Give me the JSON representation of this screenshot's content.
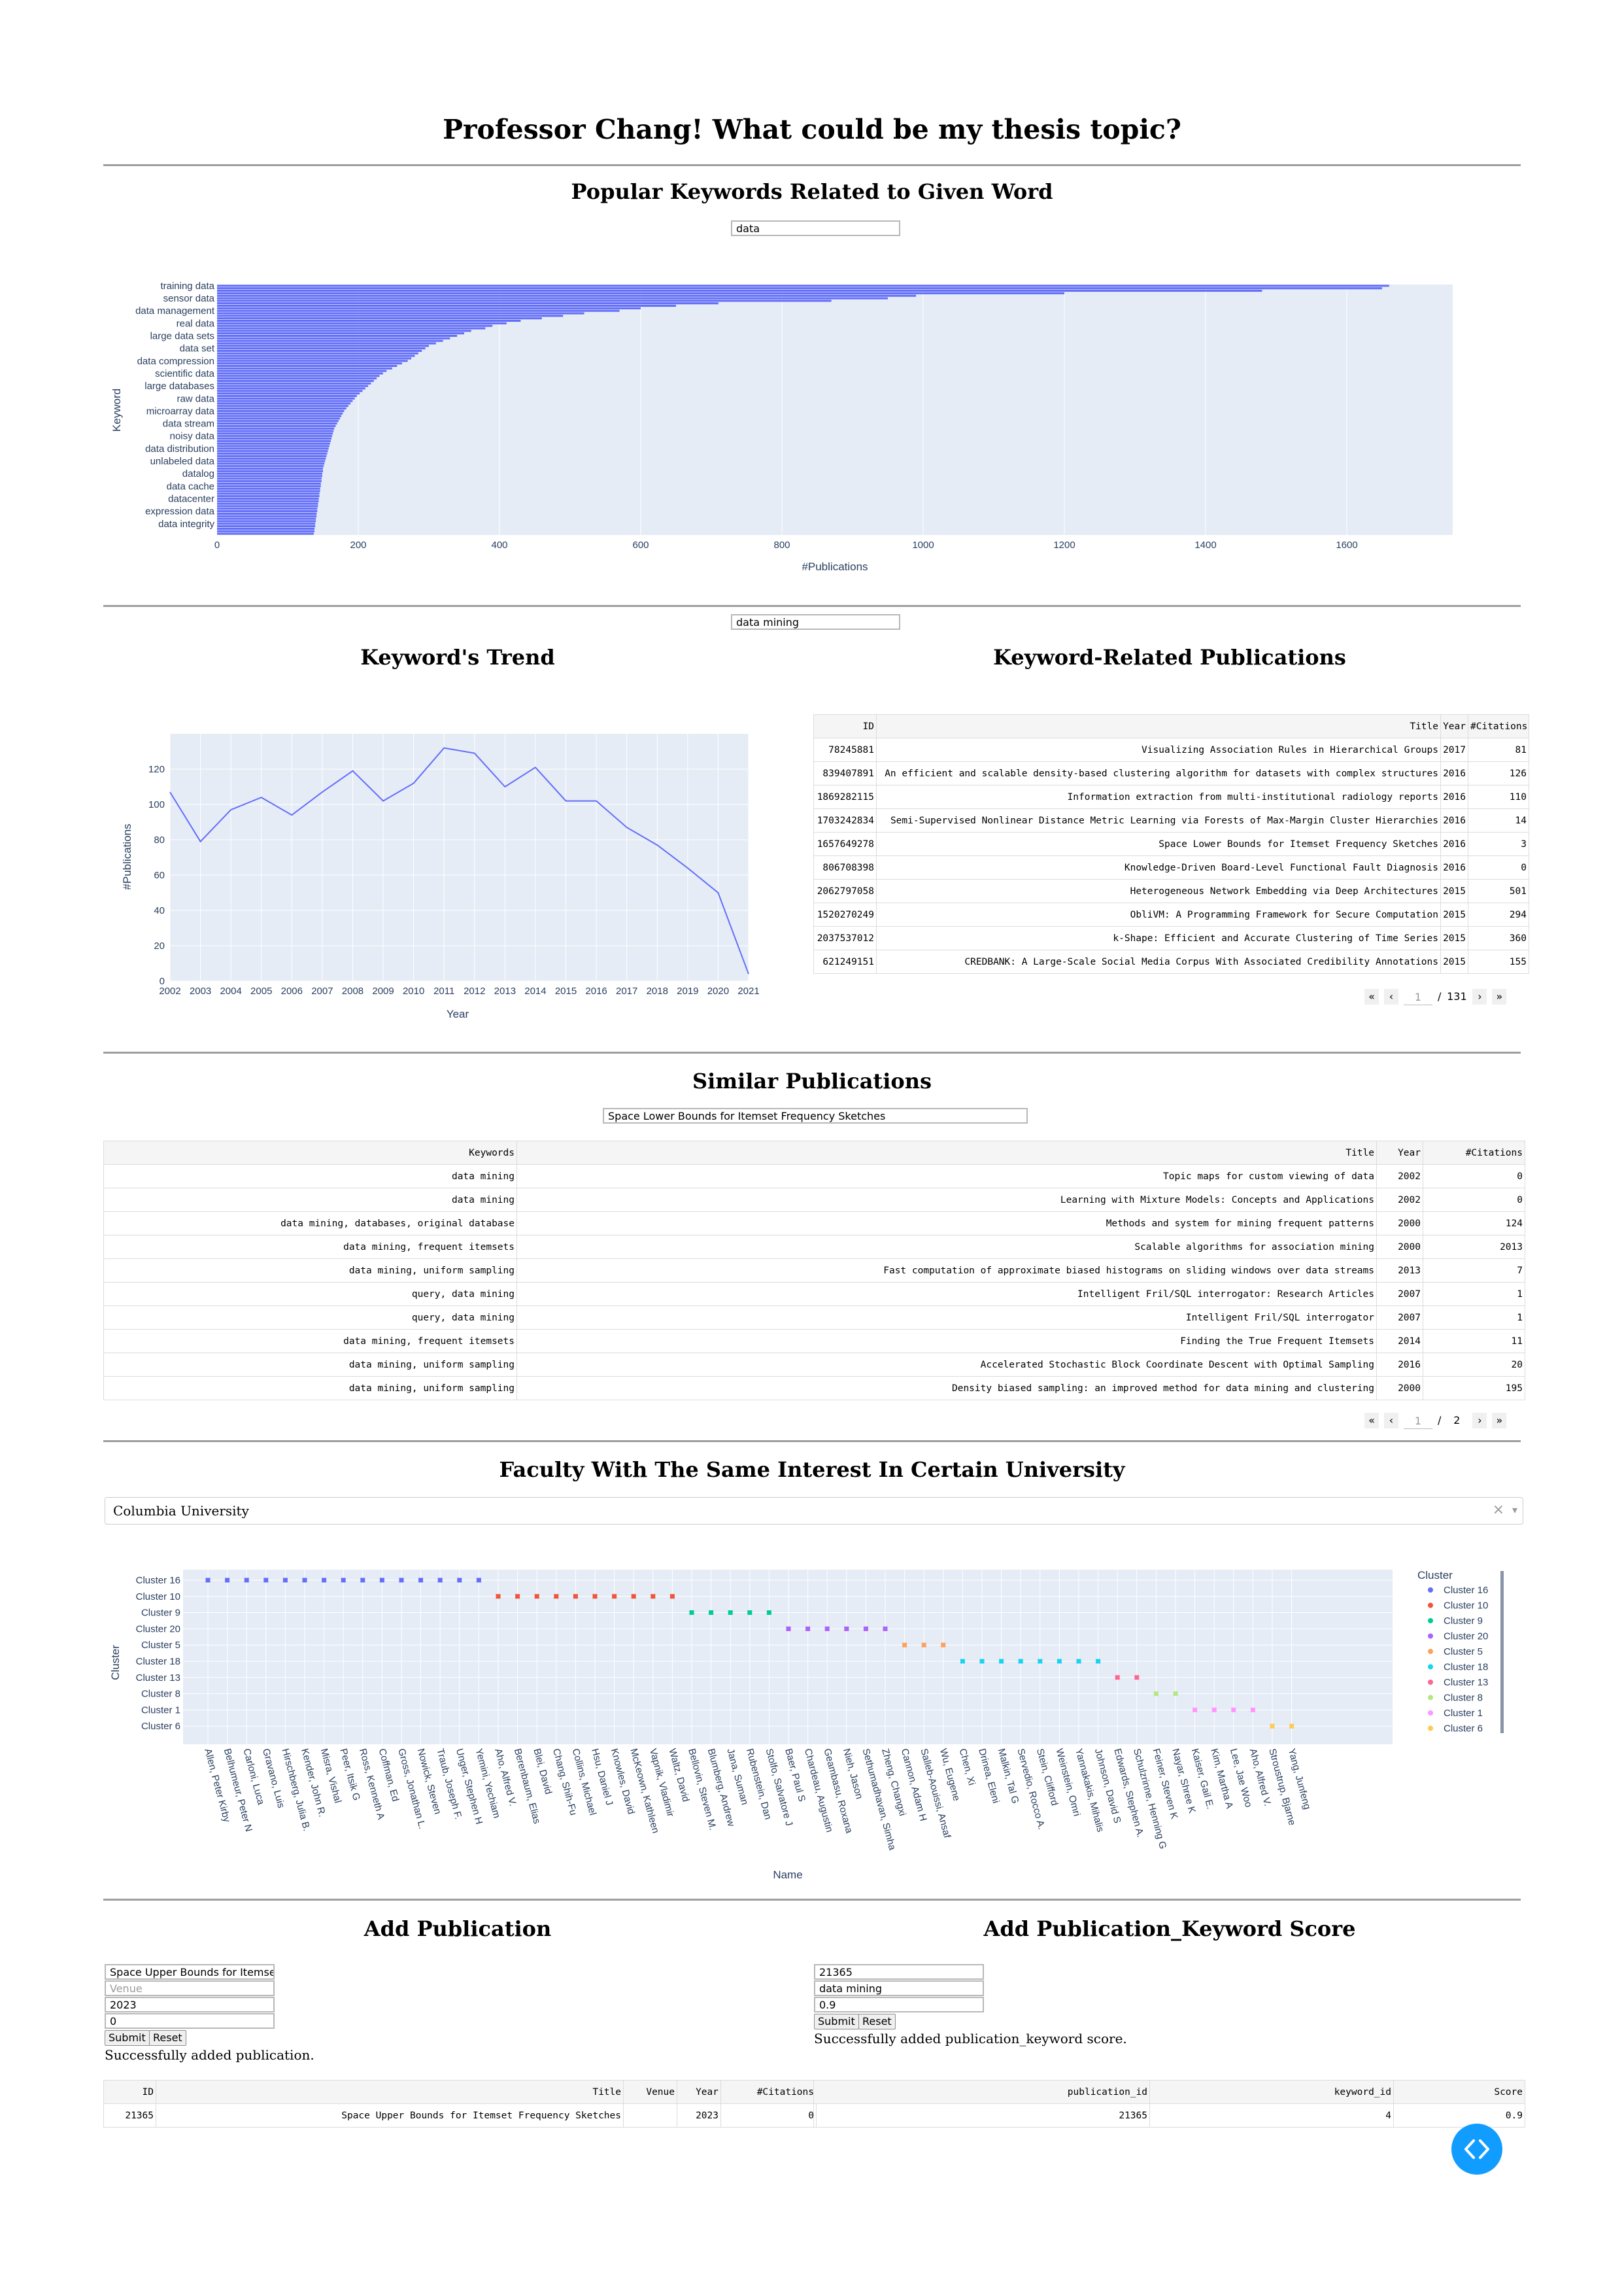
{
  "page_title": "Professor Chang! What could be my thesis topic?",
  "popular": {
    "title": "Popular Keywords Related to Given Word",
    "input": "data"
  },
  "chart_data": [
    {
      "type": "bar",
      "orientation": "horizontal",
      "xlabel": "#Publications",
      "ylabel": "Keyword",
      "xlim": [
        0,
        1750
      ],
      "x_ticks": [
        "0",
        "200",
        "400",
        "600",
        "800",
        "1000",
        "1200",
        "1400",
        "1600"
      ],
      "categories_labeled": [
        "training data",
        "sensor data",
        "data management",
        "real data",
        "large data sets",
        "data set",
        "data compression",
        "scientific data",
        "large databases",
        "raw data",
        "microarray data",
        "data stream",
        "noisy data",
        "data distribution",
        "unlabeled data",
        "datalog",
        "data cache",
        "datacenter",
        "expression data",
        "data integrity"
      ],
      "values": [
        1660,
        1650,
        1480,
        1200,
        990,
        950,
        870,
        710,
        650,
        600,
        570,
        520,
        490,
        460,
        430,
        410,
        390,
        380,
        360,
        350,
        340,
        330,
        320,
        310,
        300,
        295,
        290,
        285,
        280,
        275,
        270,
        262,
        255,
        248,
        240,
        235,
        230,
        226,
        222,
        218,
        214,
        210,
        206,
        202,
        198,
        195,
        192,
        189,
        186,
        183,
        180,
        178,
        176,
        174,
        172,
        170,
        168,
        166,
        165,
        164,
        163,
        162,
        161,
        160,
        159,
        158,
        157,
        156,
        155,
        154,
        153,
        152,
        151,
        150,
        150,
        149,
        149,
        148,
        148,
        147,
        147,
        146,
        146,
        145,
        145,
        144,
        144,
        143,
        143,
        142,
        142,
        141,
        141,
        140,
        140,
        139,
        139,
        138,
        138,
        137
      ],
      "color": "#636efa"
    },
    {
      "type": "line",
      "xlabel": "Year",
      "ylabel": "#Publications",
      "x": [
        2002,
        2003,
        2004,
        2005,
        2006,
        2007,
        2008,
        2009,
        2010,
        2011,
        2012,
        2013,
        2014,
        2015,
        2016,
        2017,
        2018,
        2019,
        2020,
        2021
      ],
      "y": [
        107,
        79,
        97,
        104,
        94,
        107,
        119,
        102,
        112,
        132,
        129,
        110,
        121,
        102,
        102,
        87,
        77,
        64,
        50,
        4
      ],
      "ylim": [
        0,
        140
      ],
      "y_ticks": [
        0,
        20,
        40,
        60,
        80,
        100,
        120
      ],
      "color": "#636efa"
    },
    {
      "type": "scatter",
      "xlabel": "Name",
      "ylabel": "Cluster",
      "legend_title": "Cluster",
      "legend_position": "right",
      "y_categories": [
        "Cluster 16",
        "Cluster 10",
        "Cluster 9",
        "Cluster 20",
        "Cluster 5",
        "Cluster 18",
        "Cluster 13",
        "Cluster 8",
        "Cluster 1",
        "Cluster 6"
      ],
      "x": [
        "Allen, Peter Kirby",
        "Belhumeur, Peter N",
        "Carloni, Luca",
        "Gravano, Luis",
        "Hirschberg, Julia B.",
        "Kender, John R.",
        "Misra, Vishal",
        "Peer, Itsik G",
        "Ross, Kenneth A",
        "Coffman, Ed",
        "Gross, Jonathan L.",
        "Nowick, Steven",
        "Traub, Joseph F.",
        "Unger, Stephen H",
        "Yemini, Yechiam",
        "Aho, Alfred V.",
        "Berenbaum, Elias",
        "Blei, David",
        "Chang, Shih-Fu",
        "Collins, Michael",
        "Hsu, Daniel J",
        "Knowles, David",
        "McKeown, Kathleen",
        "Vapnik, Vladimir",
        "Waltz, David",
        "Bellovin, Steven M.",
        "Blumberg, Andrew",
        "Jana, Suman",
        "Rubenstein, Dan",
        "Stolfo, Salvatore J",
        "Baer, Paul S",
        "Chardeau, Augustin",
        "Geambasu, Roxana",
        "Nieh, Jason",
        "Sethumadhavan, Simha",
        "Zheng, Changxi",
        "Cannon, Adam H",
        "Salleb-Aouissi, Ansaf",
        "Wu, Eugene",
        "Chen, Xi",
        "Drinea, Eleni",
        "Malkin, Tal G",
        "Servedio, Rocco A.",
        "Stein, Clifford",
        "Weinstein, Omri",
        "Yannakakis, Mihalis",
        "Johnson, David S",
        "Edwards, Stephen A.",
        "Schulzrinne, Henning G",
        "Feiner, Steven K",
        "Nayar, Shree K",
        "Kaiser, Gail E.",
        "Kim, Martha A",
        "Lee, Jae Woo",
        "Aho, Alfred V.",
        "Stroustrup, Bjarne",
        "Yang, Junfeng"
      ],
      "y": [
        "Cluster 16",
        "Cluster 16",
        "Cluster 16",
        "Cluster 16",
        "Cluster 16",
        "Cluster 16",
        "Cluster 16",
        "Cluster 16",
        "Cluster 16",
        "Cluster 16",
        "Cluster 16",
        "Cluster 16",
        "Cluster 16",
        "Cluster 16",
        "Cluster 16",
        "Cluster 10",
        "Cluster 10",
        "Cluster 10",
        "Cluster 10",
        "Cluster 10",
        "Cluster 10",
        "Cluster 10",
        "Cluster 10",
        "Cluster 10",
        "Cluster 10",
        "Cluster 9",
        "Cluster 9",
        "Cluster 9",
        "Cluster 9",
        "Cluster 9",
        "Cluster 20",
        "Cluster 20",
        "Cluster 20",
        "Cluster 20",
        "Cluster 20",
        "Cluster 20",
        "Cluster 5",
        "Cluster 5",
        "Cluster 5",
        "Cluster 18",
        "Cluster 18",
        "Cluster 18",
        "Cluster 18",
        "Cluster 18",
        "Cluster 18",
        "Cluster 18",
        "Cluster 18",
        "Cluster 13",
        "Cluster 13",
        "Cluster 8",
        "Cluster 8",
        "Cluster 1",
        "Cluster 1",
        "Cluster 1",
        "Cluster 1",
        "Cluster 6",
        "Cluster 6"
      ],
      "series_colors": {
        "Cluster 16": "#636efa",
        "Cluster 10": "#ef553b",
        "Cluster 9": "#00cc96",
        "Cluster 20": "#ab63fa",
        "Cluster 5": "#ffa15a",
        "Cluster 18": "#19d3f3",
        "Cluster 13": "#ff6692",
        "Cluster 8": "#b6e880",
        "Cluster 1": "#ff97ff",
        "Cluster 6": "#fecb52"
      }
    }
  ],
  "keyword_section": {
    "input": "data mining",
    "trend_title": "Keyword's Trend",
    "pubs_title": "Keyword-Related Publications",
    "columns": [
      "ID",
      "Title",
      "Year",
      "#Citations"
    ],
    "rows": [
      [
        "78245881",
        "Visualizing Association Rules in Hierarchical Groups",
        "2017",
        "81"
      ],
      [
        "839407891",
        "An efficient and scalable density-based clustering algorithm for datasets with complex structures",
        "2016",
        "126"
      ],
      [
        "1869282115",
        "Information extraction from multi-institutional radiology reports",
        "2016",
        "110"
      ],
      [
        "1703242834",
        "Semi-Supervised Nonlinear Distance Metric Learning via Forests of Max-Margin Cluster Hierarchies",
        "2016",
        "14"
      ],
      [
        "1657649278",
        "Space Lower Bounds for Itemset Frequency Sketches",
        "2016",
        "3"
      ],
      [
        "806708398",
        "Knowledge-Driven Board-Level Functional Fault Diagnosis",
        "2016",
        "0"
      ],
      [
        "2062797058",
        "Heterogeneous Network Embedding via Deep Architectures",
        "2015",
        "501"
      ],
      [
        "1520270249",
        "ObliVM: A Programming Framework for Secure Computation",
        "2015",
        "294"
      ],
      [
        "2037537012",
        "k-Shape: Efficient and Accurate Clustering of Time Series",
        "2015",
        "360"
      ],
      [
        "621249151",
        "CREDBANK: A Large-Scale Social Media Corpus With Associated Credibility Annotations",
        "2015",
        "155"
      ]
    ],
    "pager": {
      "first": "«",
      "prev": "‹",
      "current": "1",
      "sep": "/",
      "total": "131",
      "next": "›",
      "last": "»"
    }
  },
  "similar": {
    "title": "Similar Publications",
    "input": "Space Lower Bounds for Itemset Frequency Sketches",
    "columns": [
      "Keywords",
      "Title",
      "Year",
      "#Citations"
    ],
    "rows": [
      [
        "data mining",
        "Topic maps for custom viewing of data",
        "2002",
        "0"
      ],
      [
        "data mining",
        "Learning with Mixture Models: Concepts and Applications",
        "2002",
        "0"
      ],
      [
        "data mining, databases, original database",
        "Methods and system for mining frequent patterns",
        "2000",
        "124"
      ],
      [
        "data mining, frequent itemsets",
        "Scalable algorithms for association mining",
        "2000",
        "2013"
      ],
      [
        "data mining, uniform sampling",
        "Fast computation of approximate biased histograms on sliding windows over data streams",
        "2013",
        "7"
      ],
      [
        "query, data mining",
        "Intelligent Fril/SQL interrogator: Research Articles",
        "2007",
        "1"
      ],
      [
        "query, data mining",
        "Intelligent Fril/SQL interrogator",
        "2007",
        "1"
      ],
      [
        "data mining, frequent itemsets",
        "Finding the True Frequent Itemsets",
        "2014",
        "11"
      ],
      [
        "data mining, uniform sampling",
        "Accelerated Stochastic Block Coordinate Descent with Optimal Sampling",
        "2016",
        "20"
      ],
      [
        "data mining, uniform sampling",
        "Density biased sampling: an improved method for data mining and clustering",
        "2000",
        "195"
      ]
    ],
    "pager": {
      "first": "«",
      "prev": "‹",
      "current": "1",
      "sep": "/",
      "total": "2",
      "next": "›",
      "last": "»"
    }
  },
  "faculty": {
    "title": "Faculty With The Same Interest In Certain University",
    "university": "Columbia University",
    "clear_icon": "×",
    "caret_icon": "▾"
  },
  "add_pub": {
    "title": "Add Publication",
    "title_value": "Space Upper Bounds for Itemset F",
    "venue_placeholder": "Venue",
    "year_value": "2023",
    "citations_value": "0",
    "submit_label": "Submit",
    "reset_label": "Reset",
    "message": "Successfully added publication.",
    "columns": [
      "ID",
      "Title",
      "Venue",
      "Year",
      "#Citations"
    ],
    "row": [
      "21365",
      "Space Upper Bounds for Itemset Frequency Sketches",
      "",
      "2023",
      "0"
    ]
  },
  "add_score": {
    "title": "Add Publication_Keyword Score",
    "pub_id_value": "21365",
    "keyword_value": "data mining",
    "score_value": "0.9",
    "submit_label": "Submit",
    "reset_label": "Reset",
    "message": "Successfully added publication_keyword score.",
    "columns": [
      "publication_id",
      "keyword_id",
      "Score"
    ],
    "row": [
      "21365",
      "4",
      "0.9"
    ]
  },
  "fab": {
    "icon": "code-icon",
    "color": "#119dff"
  }
}
